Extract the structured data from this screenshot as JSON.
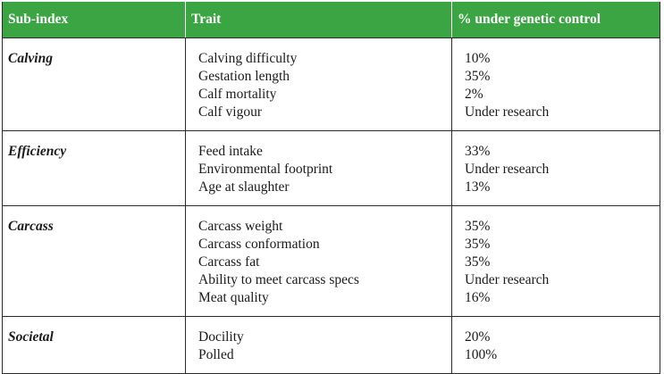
{
  "headers": {
    "subindex": "Sub-index",
    "trait": "Trait",
    "genetic": "% under genetic control"
  },
  "sections": [
    {
      "name": "Calving",
      "traits": [
        "Calving difficulty",
        "Gestation length",
        "Calf mortality",
        "Calf vigour"
      ],
      "values": [
        "10%",
        "35%",
        "2%",
        "Under research"
      ]
    },
    {
      "name": "Efficiency",
      "traits": [
        "Feed intake",
        "Environmental footprint",
        "Age at slaughter"
      ],
      "values": [
        "33%",
        "Under research",
        "13%"
      ]
    },
    {
      "name": "Carcass",
      "traits": [
        "Carcass weight",
        "Carcass conformation",
        "Carcass fat",
        "Ability to meet carcass specs",
        "Meat quality"
      ],
      "values": [
        "35%",
        "35%",
        "35%",
        "Under research",
        "16%"
      ]
    },
    {
      "name": "Societal",
      "traits": [
        "Docility",
        "Polled"
      ],
      "values": [
        "20%",
        "100%"
      ]
    }
  ],
  "colors": {
    "header_bg": "#3aa542",
    "header_text": "#ffffff",
    "border": "#2b2b2b"
  }
}
